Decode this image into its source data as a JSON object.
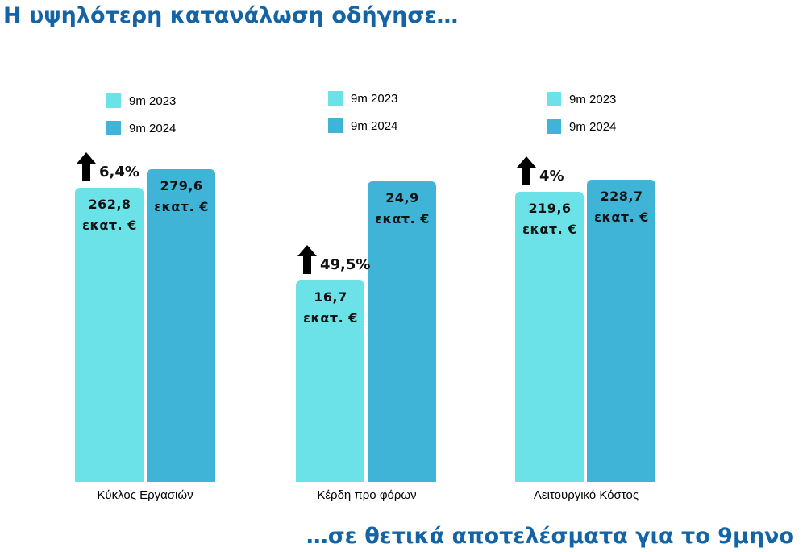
{
  "headline": "Η υψηλότερη κατανάλωση οδήγησε…",
  "footer": "…σε θετικά αποτελέσματα για το 9μηνο",
  "colors": {
    "series_2023": "#6ae2e8",
    "series_2024": "#3fb4d6",
    "text_blue": "#1464a5"
  },
  "chart_data": [
    {
      "type": "bar",
      "categories": [
        "Κύκλος Εργασιών"
      ],
      "series": [
        {
          "name": "9m 2023",
          "values": [
            262.8
          ]
        },
        {
          "name": "9m 2024",
          "values": [
            279.6
          ]
        }
      ],
      "value_labels": [
        "262,8",
        "279,6"
      ],
      "unit": "εκατ. €",
      "growth": "6,4%",
      "ylim": [
        0,
        310
      ]
    },
    {
      "type": "bar",
      "categories": [
        "Κέρδη προ φόρων"
      ],
      "series": [
        {
          "name": "9m 2023",
          "values": [
            16.7
          ]
        },
        {
          "name": "9m 2024",
          "values": [
            24.9
          ]
        }
      ],
      "value_labels": [
        "16,7",
        "24,9"
      ],
      "unit": "εκατ. €",
      "growth": "49,5%",
      "ylim": [
        0,
        28.7
      ]
    },
    {
      "type": "bar",
      "categories": [
        "Λειτουργικό Κόστος"
      ],
      "series": [
        {
          "name": "9m 2023",
          "values": [
            219.6
          ]
        },
        {
          "name": "9m 2024",
          "values": [
            228.7
          ]
        }
      ],
      "value_labels": [
        "219,6",
        "228,7"
      ],
      "unit": "εκατ. €",
      "growth": "4%",
      "ylim": [
        0,
        262
      ]
    }
  ]
}
